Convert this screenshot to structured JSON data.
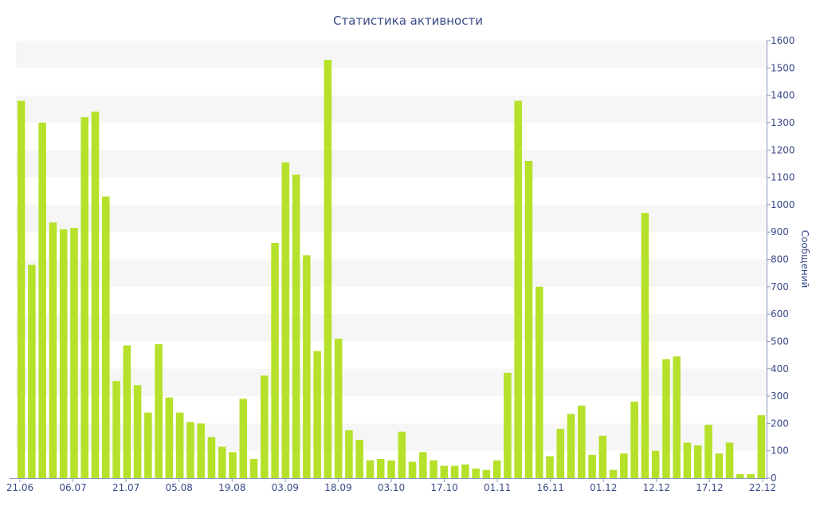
{
  "chart_data": {
    "type": "bar",
    "title": "Статистика активности",
    "xlabel": "",
    "ylabel": "Сообщений",
    "ylim": [
      0,
      1600
    ],
    "y_ticks": [
      0,
      100,
      200,
      300,
      400,
      500,
      600,
      700,
      800,
      900,
      1000,
      1100,
      1200,
      1300,
      1400,
      1500,
      1600
    ],
    "x_tick_labels": [
      "21.06",
      "06.07",
      "21.07",
      "05.08",
      "19.08",
      "03.09",
      "18.09",
      "03.10",
      "17.10",
      "01.11",
      "16.11",
      "01.12",
      "12.12",
      "17.12",
      "22.12"
    ],
    "y_axis_side": "right",
    "bar_color": "#b5e12a",
    "band_color": "#f6f6f6",
    "text_color": "#3a4a88",
    "values": [
      1380,
      780,
      1300,
      935,
      910,
      915,
      1320,
      1340,
      1030,
      355,
      485,
      340,
      240,
      490,
      295,
      240,
      205,
      200,
      150,
      115,
      95,
      290,
      70,
      375,
      860,
      1155,
      1110,
      815,
      465,
      1530,
      510,
      175,
      140,
      65,
      70,
      65,
      170,
      60,
      95,
      65,
      45,
      45,
      50,
      35,
      30,
      65,
      385,
      1380,
      1160,
      700,
      80,
      180,
      235,
      265,
      85,
      155,
      30,
      90,
      280,
      970,
      100,
      435,
      445,
      130,
      120,
      195,
      90,
      130,
      15,
      15,
      230
    ]
  }
}
